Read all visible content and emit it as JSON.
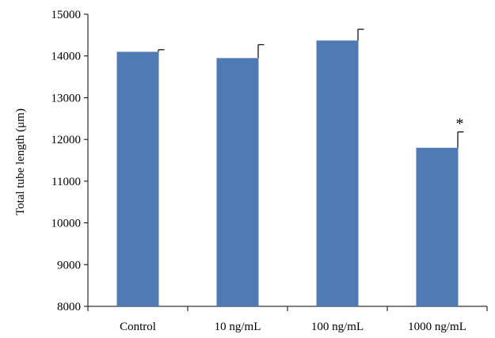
{
  "chart_data": {
    "type": "bar",
    "title": "",
    "xlabel": "",
    "ylabel": "Total tube length (μm)",
    "ylim": [
      8000,
      15000
    ],
    "yticks": [
      8000,
      9000,
      10000,
      11000,
      12000,
      13000,
      14000,
      15000
    ],
    "categories": [
      "Control",
      "10 ng/mL",
      "100 ng/mL",
      "1000 ng/mL"
    ],
    "values": [
      14100,
      13950,
      14370,
      11800
    ],
    "error_upper": [
      50,
      320,
      270,
      380
    ],
    "annotations": [
      "",
      "",
      "",
      "*"
    ],
    "bar_color": "#4f7ab3",
    "grid": false,
    "legend": "none"
  }
}
